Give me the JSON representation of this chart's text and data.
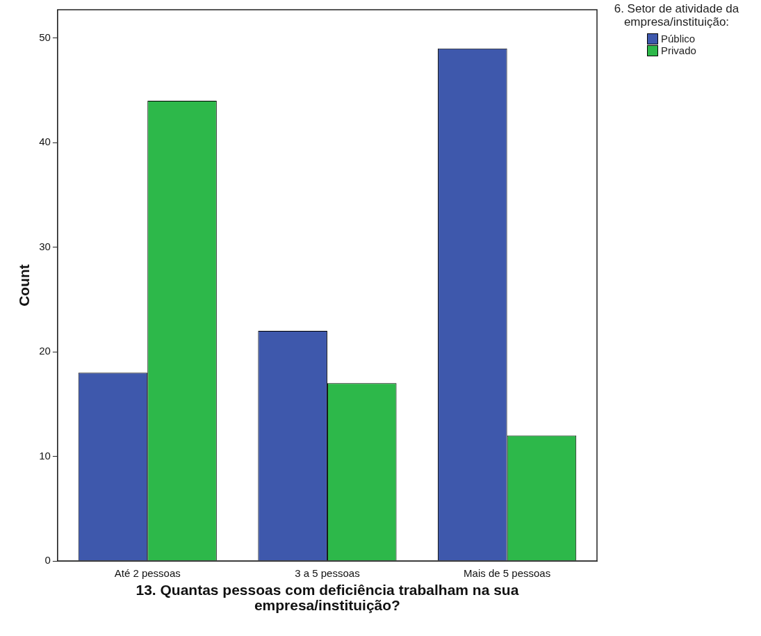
{
  "chart_data": {
    "type": "bar",
    "xlabel": "13. Quantas pessoas com deficiência trabalham na sua empresa/instituição?",
    "ylabel": "Count",
    "legend_title": "6. Setor de atividade da empresa/instituição:",
    "categories": [
      "Até 2 pessoas",
      "3 a 5 pessoas",
      "Mais de 5 pessoas"
    ],
    "series": [
      {
        "name": "Público",
        "color": "#3e58ac",
        "values": [
          18,
          22,
          49
        ]
      },
      {
        "name": "Privado",
        "color": "#2db84a",
        "values": [
          44,
          17,
          12
        ]
      }
    ],
    "ylim": [
      0,
      52.7
    ],
    "yticks": [
      0,
      10,
      20,
      30,
      40,
      50
    ],
    "grid": false,
    "legend": "top right"
  }
}
